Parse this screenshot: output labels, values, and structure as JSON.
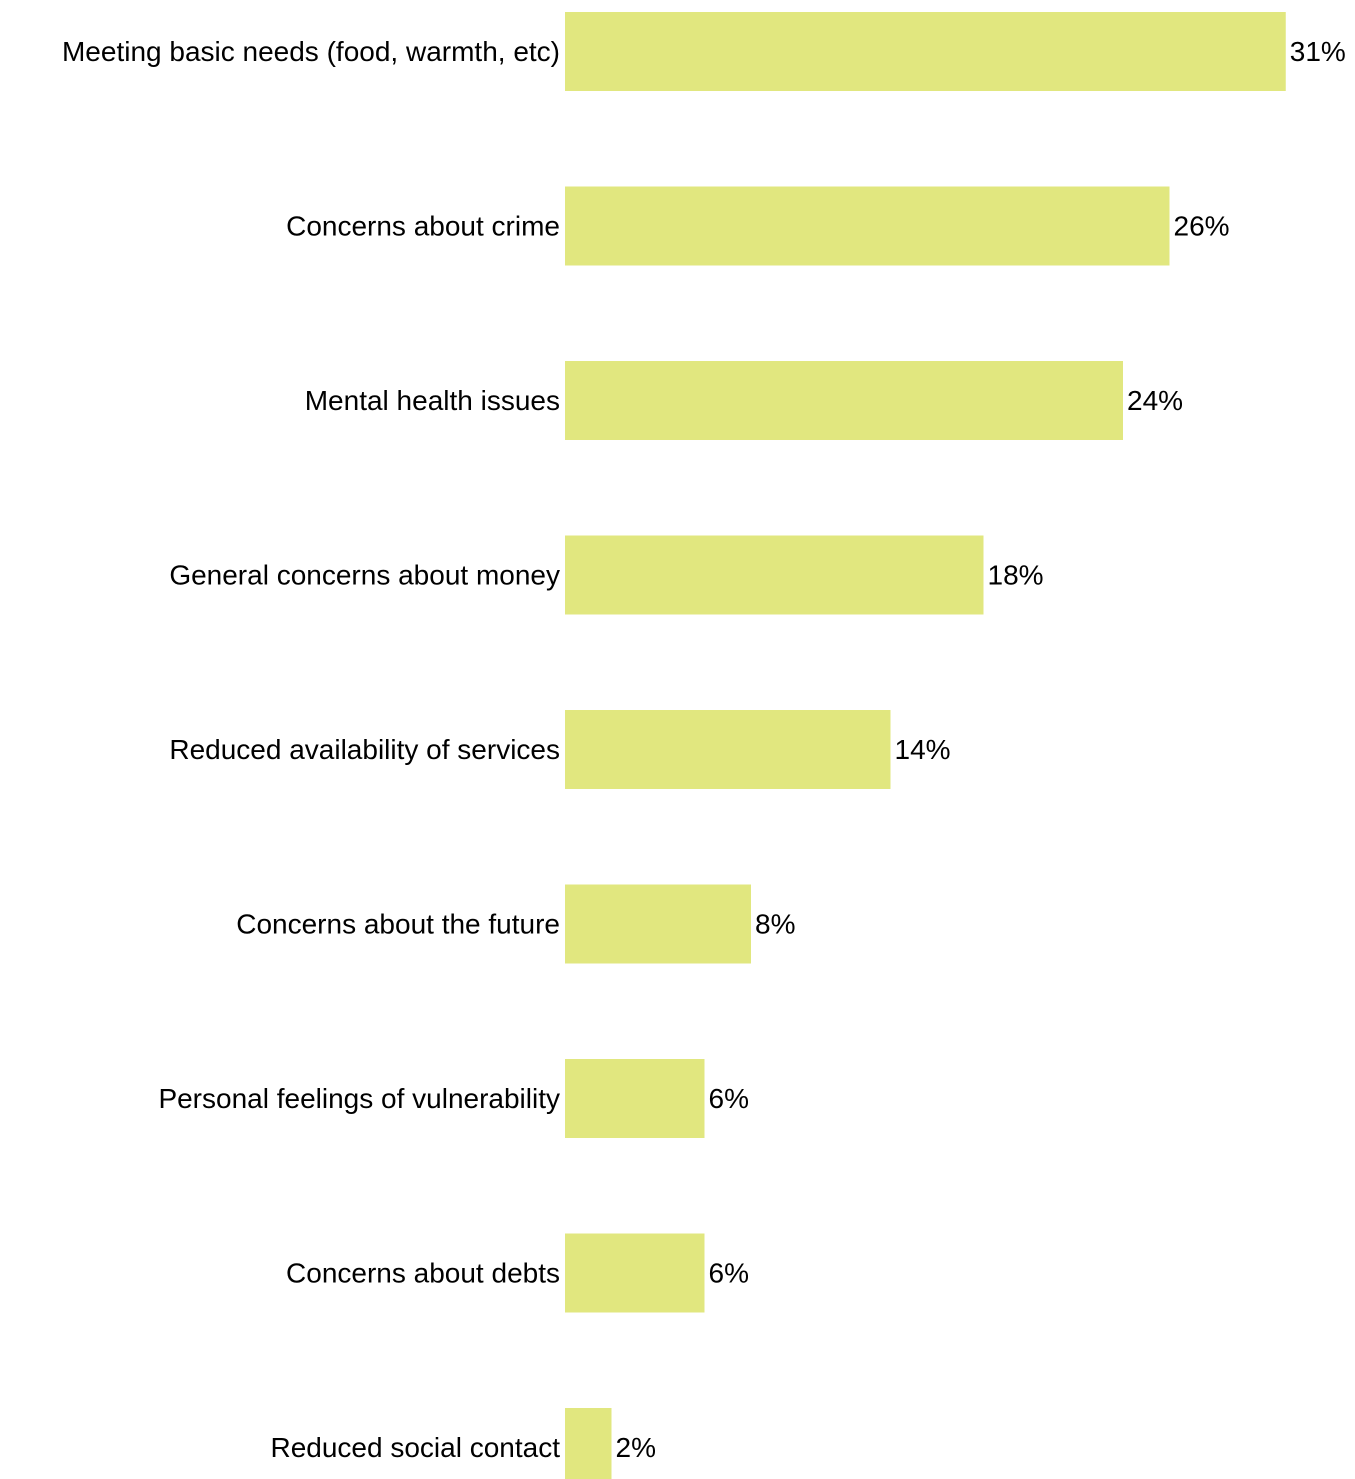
{
  "chart_data": {
    "type": "bar",
    "orientation": "horizontal",
    "categories": [
      "Meeting basic needs (food, warmth, etc)",
      "Concerns about crime",
      "Mental health issues",
      "General concerns about money",
      "Reduced availability of services",
      "Concerns about the future",
      "Personal feelings of vulnerability",
      "Concerns about debts",
      "Reduced social contact"
    ],
    "values": [
      31,
      26,
      24,
      18,
      14,
      8,
      6,
      6,
      2
    ],
    "value_labels": [
      "31%",
      "26%",
      "24%",
      "18%",
      "14%",
      "8%",
      "6%",
      "6%",
      "2%"
    ],
    "unit": "%",
    "title": "",
    "xlabel": "",
    "ylabel": "",
    "xlim": [
      0,
      31
    ],
    "grid": false,
    "legend": "none",
    "bar_color": "#e1e77f"
  }
}
